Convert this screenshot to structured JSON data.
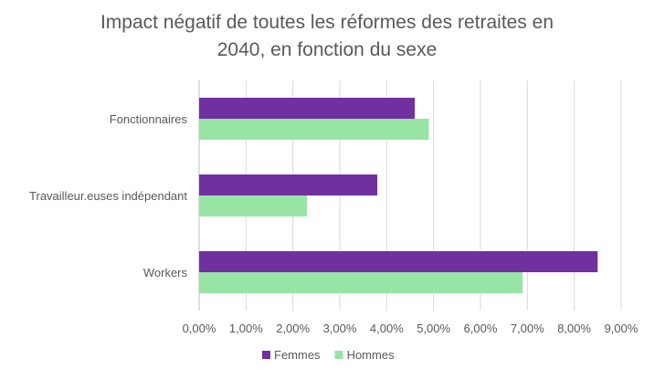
{
  "chart_data": {
    "type": "bar",
    "orientation": "horizontal",
    "title_line1": "Impact négatif de toutes les réformes des retraites en",
    "title_line2": "2040, en fonction du sexe",
    "categories": [
      "Fonctionnaires",
      "Travailleur.euses indépendant",
      "Workers"
    ],
    "series": [
      {
        "name": "Femmes",
        "color": "#7030A0",
        "values": [
          4.6,
          3.8,
          8.5
        ]
      },
      {
        "name": "Hommes",
        "color": "#97E4A4",
        "values": [
          4.9,
          2.3,
          6.9
        ]
      }
    ],
    "x_ticks": [
      "0,00%",
      "1,00%",
      "2,00%",
      "3,00%",
      "4,00%",
      "5,00%",
      "6,00%",
      "7,00%",
      "8,00%",
      "9,00%"
    ],
    "xlim": [
      0,
      9
    ],
    "grid": true,
    "legend_position": "bottom"
  }
}
